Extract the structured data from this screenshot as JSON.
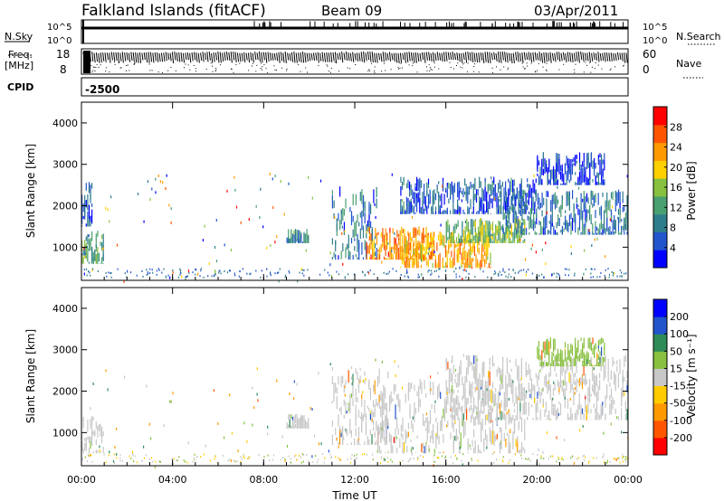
{
  "header": {
    "station": "Falkland Islands (fitACF)",
    "beam": "Beam 09",
    "date": "03/Apr/2011"
  },
  "panels": {
    "noise": {
      "left_label": "N.Sky",
      "right_label": "N.Search",
      "left_ticks": [
        "10^5",
        "10^0"
      ],
      "right_ticks": [
        "10^5",
        "10^0"
      ]
    },
    "freq": {
      "left_label": "Freq.",
      "left_unit": "[MHz]",
      "right_label": "Nave",
      "left_ticks": [
        "18",
        "8"
      ],
      "right_ticks": [
        "60",
        "0"
      ]
    },
    "cpid": {
      "label": "CPID",
      "value": "-2500"
    }
  },
  "colors": {
    "frame": "#000000",
    "velocity_background": "#c8c8c8"
  },
  "chart_data": [
    {
      "type": "heatmap",
      "name": "power-panel",
      "xlabel": "",
      "ylabel": "Slant Range [km]",
      "ylim": [
        200,
        4500
      ],
      "y_ticks": [
        "1000",
        "2000",
        "3000",
        "4000"
      ],
      "colorbar": {
        "label": "Power [dB]",
        "ticks": [
          "28",
          "24",
          "20",
          "16",
          "12",
          "8",
          "4"
        ],
        "colors": [
          "#0000ff",
          "#2255cc",
          "#2e7d8c",
          "#4aa070",
          "#88c040",
          "#ffd000",
          "#ff9900",
          "#ff5500",
          "#ff0000"
        ]
      },
      "patches": [
        {
          "t": [
            0.0,
            1.0
          ],
          "r": [
            600,
            1400
          ],
          "level": 12
        },
        {
          "t": [
            0.0,
            0.5
          ],
          "r": [
            1500,
            2600
          ],
          "level": 6
        },
        {
          "t": [
            9.0,
            10.0
          ],
          "r": [
            1100,
            1450
          ],
          "level": 10
        },
        {
          "t": [
            11.0,
            13.0
          ],
          "r": [
            700,
            2500
          ],
          "level": 8
        },
        {
          "t": [
            12.5,
            15.5
          ],
          "r": [
            700,
            1500
          ],
          "level": 24
        },
        {
          "t": [
            14.0,
            18.0
          ],
          "r": [
            500,
            1400
          ],
          "level": 22
        },
        {
          "t": [
            16.0,
            19.5
          ],
          "r": [
            1100,
            1700
          ],
          "level": 14
        },
        {
          "t": [
            14.0,
            20.0
          ],
          "r": [
            1800,
            2700
          ],
          "level": 6
        },
        {
          "t": [
            18.5,
            24.0
          ],
          "r": [
            1300,
            2400
          ],
          "level": 8
        },
        {
          "t": [
            20.0,
            23.0
          ],
          "r": [
            2500,
            3300
          ],
          "level": 4
        }
      ]
    },
    {
      "type": "heatmap",
      "name": "velocity-panel",
      "xlabel": "Time UT",
      "ylabel": "Slant Range [km]",
      "ylim": [
        200,
        4500
      ],
      "x_ticks": [
        "00:00",
        "04:00",
        "08:00",
        "12:00",
        "16:00",
        "20:00",
        "00:00"
      ],
      "y_ticks": [
        "1000",
        "2000",
        "3000",
        "4000"
      ],
      "colorbar": {
        "label": "Velocity [m s⁻¹]",
        "ticks": [
          "200",
          "100",
          "50",
          "15",
          "-15",
          "-50",
          "-100",
          "-200"
        ],
        "colors": [
          "#ff0000",
          "#ff5500",
          "#ff9900",
          "#ffcc00",
          "#c8c8c8",
          "#88c040",
          "#2e8b57",
          "#2255cc",
          "#0000ff"
        ]
      },
      "patches": [
        {
          "t": [
            0.0,
            1.0
          ],
          "r": [
            500,
            1400
          ],
          "level": 0
        },
        {
          "t": [
            9.0,
            10.0
          ],
          "r": [
            1100,
            1450
          ],
          "level": 0
        },
        {
          "t": [
            11.0,
            13.5
          ],
          "r": [
            700,
            2600
          ],
          "level": 0
        },
        {
          "t": [
            13.0,
            19.5
          ],
          "r": [
            500,
            2300
          ],
          "level": 0
        },
        {
          "t": [
            16.0,
            24.0
          ],
          "r": [
            1300,
            2900
          ],
          "level": 0
        },
        {
          "t": [
            20.0,
            23.0
          ],
          "r": [
            2600,
            3300
          ],
          "level": 40
        }
      ]
    }
  ]
}
